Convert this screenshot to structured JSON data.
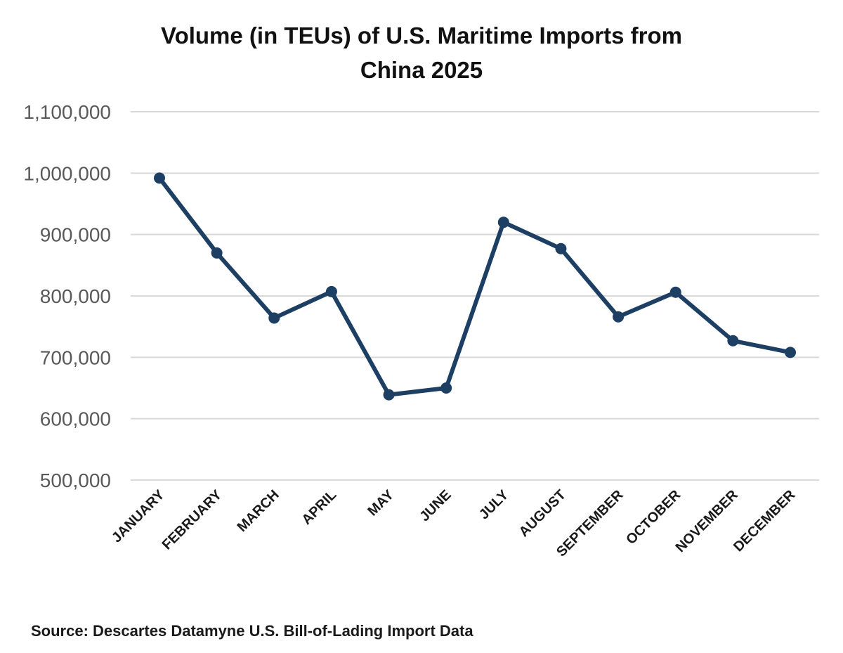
{
  "chart_data": {
    "type": "line",
    "title": [
      "Volume (in TEUs) of U.S. Maritime Imports from",
      "China 2025"
    ],
    "xlabel": "",
    "ylabel": "",
    "categories": [
      "JANUARY",
      "FEBRUARY",
      "MARCH",
      "APRIL",
      "MAY",
      "JUNE",
      "JULY",
      "AUGUST",
      "SEPTEMBER",
      "OCTOBER",
      "NOVEMBER",
      "DECEMBER"
    ],
    "series": [
      {
        "name": "TEUs",
        "values": [
          992000,
          870000,
          764000,
          807000,
          639000,
          650000,
          920000,
          877000,
          766000,
          806000,
          727000,
          708000
        ],
        "color": "#1c3f63"
      }
    ],
    "ylim": [
      500000,
      1100000
    ],
    "yticks": [
      500000,
      600000,
      700000,
      800000,
      900000,
      1000000,
      1100000
    ],
    "ytick_labels": [
      "500,000",
      "600,000",
      "700,000",
      "800,000",
      "900,000",
      "1,000,000",
      "1,100,000"
    ],
    "grid": true,
    "legend": "none",
    "source": "Source: Descartes Datamyne U.S. Bill-of-Lading Import Data",
    "grid_color": "#d9d9d9"
  }
}
